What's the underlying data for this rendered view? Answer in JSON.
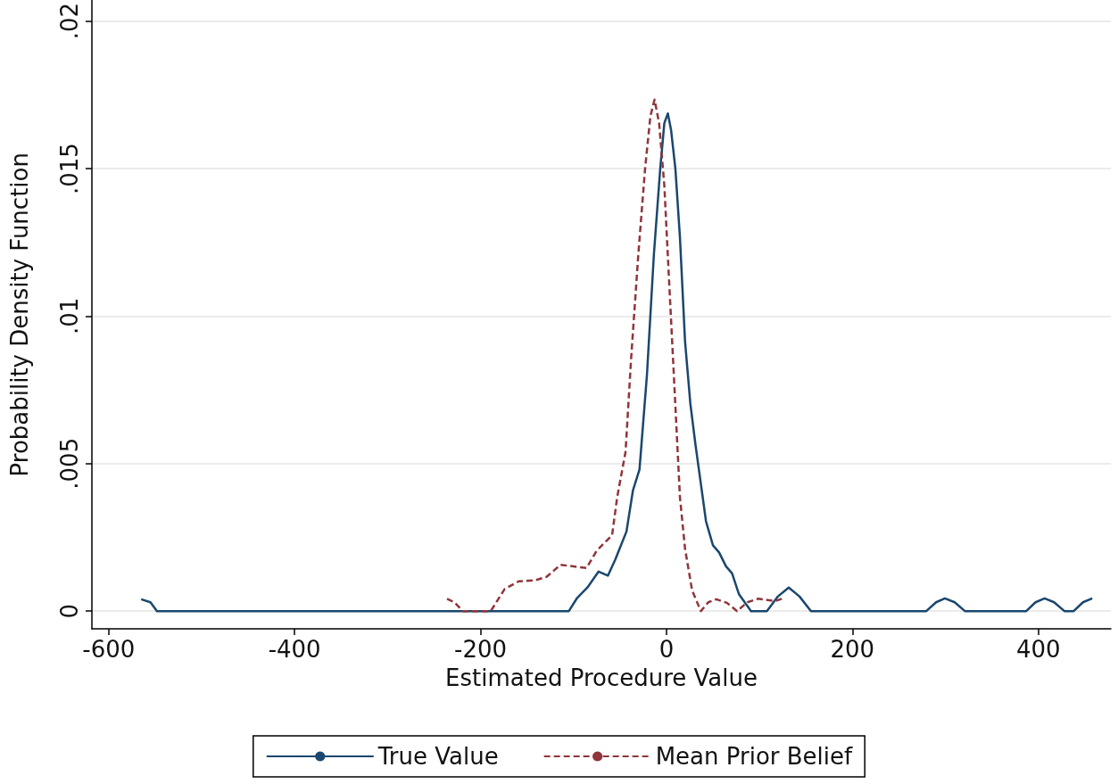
{
  "chart_data": {
    "type": "line",
    "xlabel": "Estimated Procedure Value",
    "ylabel": "Probability Density Function",
    "xlim": [
      -618,
      478
    ],
    "xticks": [
      -600,
      -400,
      -200,
      0,
      200,
      400
    ],
    "ylim": [
      -0.0006,
      0.0207
    ],
    "yticks": [
      0,
      {
        "value": 0.005,
        "label": ".005"
      },
      {
        "value": 0.01,
        "label": ".01"
      },
      {
        "value": 0.015,
        "label": ".015"
      },
      {
        "value": 0.02,
        "label": ".02"
      }
    ],
    "grid": "y",
    "legend": "bottom",
    "marker": "none",
    "series": [
      {
        "name": "True Value",
        "color": "#1a476f",
        "line_style": "solid",
        "x": [
          -565,
          -555,
          -548,
          -105,
          -96,
          -85,
          -73,
          -63,
          -55,
          -43,
          -36,
          -29,
          -21,
          -13.5,
          -6.7,
          -2.3,
          1.5,
          5,
          9.6,
          14.5,
          20,
          25.7,
          31.3,
          36.9,
          42.5,
          50,
          56.6,
          64,
          70.6,
          78,
          91,
          108,
          120,
          131.5,
          143,
          155.5,
          279.5,
          290,
          299.5,
          310,
          321,
          387,
          397,
          406.7,
          417,
          428,
          438,
          448,
          458
        ],
        "values": [
          0.0004,
          0.0003,
          0,
          0,
          0.00045,
          0.0008,
          0.00134,
          0.0012,
          0.00175,
          0.0027,
          0.0041,
          0.0048,
          0.008,
          0.0121,
          0.015,
          0.01654,
          0.01687,
          0.0163,
          0.015,
          0.01267,
          0.00914,
          0.00703,
          0.00562,
          0.00434,
          0.00305,
          0.00223,
          0.00199,
          0.00152,
          0.00128,
          0.00057,
          0,
          0,
          0.0005,
          0.0008,
          0.0005,
          0,
          0,
          0.0003,
          0.00043,
          0.0003,
          0,
          0,
          0.0003,
          0.00043,
          0.0003,
          0,
          0,
          0.0003,
          0.00043
        ]
      },
      {
        "name": "Mean Prior Belief",
        "color": "#90353b",
        "line_style": "dashed",
        "x": [
          -236,
          -228,
          -219,
          -189,
          -174,
          -159,
          -140.5,
          -129,
          -114,
          -86,
          -75,
          -58.5,
          -53,
          -44,
          -38,
          -30.3,
          -23,
          -17.3,
          -12.8,
          -7.9,
          -2.3,
          3.3,
          8.9,
          14.5,
          20,
          27.6,
          37,
          45,
          53.7,
          65,
          76,
          87,
          98.6,
          117,
          124.5
        ],
        "values": [
          0.00042,
          0.0003,
          0,
          0,
          0.00075,
          0.00101,
          0.00105,
          0.00116,
          0.00157,
          0.00146,
          0.00205,
          0.00257,
          0.00386,
          0.0054,
          0.00857,
          0.01208,
          0.015,
          0.01677,
          0.01734,
          0.01654,
          0.01443,
          0.0109,
          0.0074,
          0.00386,
          0.00211,
          0.0007,
          0,
          0.0003,
          0.0004,
          0.00028,
          0,
          0.0003,
          0.00042,
          0.00034,
          0.00042
        ]
      }
    ]
  }
}
